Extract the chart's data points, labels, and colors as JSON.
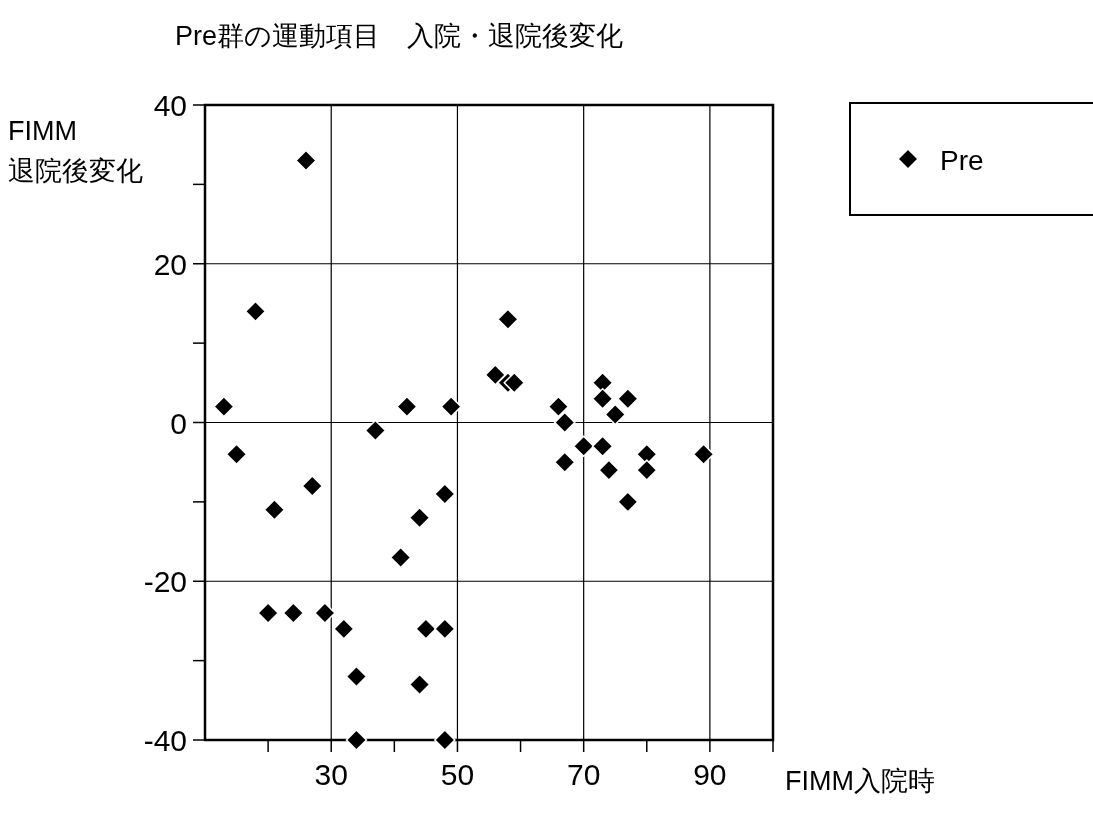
{
  "chart_data": {
    "type": "scatter",
    "title": "Pre群の運動項目　入院・退院後変化",
    "xlabel": "FIMM入院時",
    "ylabel": "FIMM\n退院後変化",
    "xlim": [
      10,
      100
    ],
    "xticks": [
      {
        "value": 20,
        "label": null
      },
      30,
      {
        "value": 40,
        "label": null
      },
      50,
      {
        "value": 60,
        "label": null
      },
      70,
      {
        "value": 80,
        "label": null
      },
      90,
      {
        "value": 100,
        "label": null
      }
    ],
    "ylim": [
      -40,
      40
    ],
    "yticks": [
      -40,
      {
        "value": -30,
        "label": null
      },
      -20,
      {
        "value": -10,
        "label": null
      },
      0,
      {
        "value": 10,
        "label": null
      },
      20,
      {
        "value": 30,
        "label": null
      },
      40
    ],
    "grid": true,
    "legend": "top right",
    "marker": "diamond",
    "series": [
      {
        "name": "Pre",
        "color": "#000000",
        "x": [
          26,
          18,
          13,
          15,
          21,
          27,
          20,
          24,
          29,
          32,
          34,
          34,
          37,
          41,
          42,
          44,
          44,
          45,
          48,
          48,
          48,
          49,
          56,
          58,
          59,
          58,
          66,
          67,
          67,
          70,
          73,
          73,
          73,
          75,
          74,
          77,
          77,
          80,
          80,
          89
        ],
        "values": [
          33,
          14,
          2,
          -4,
          -11,
          -8,
          -24,
          -24,
          -24,
          -26,
          -32,
          -40,
          -1,
          -17,
          2,
          -12,
          -33,
          -26,
          -9,
          -26,
          -40,
          2,
          6,
          5,
          5,
          13,
          2,
          0,
          -5,
          -3,
          -3,
          5,
          3,
          1,
          -6,
          3,
          -10,
          -4,
          -6,
          -4
        ]
      }
    ]
  }
}
